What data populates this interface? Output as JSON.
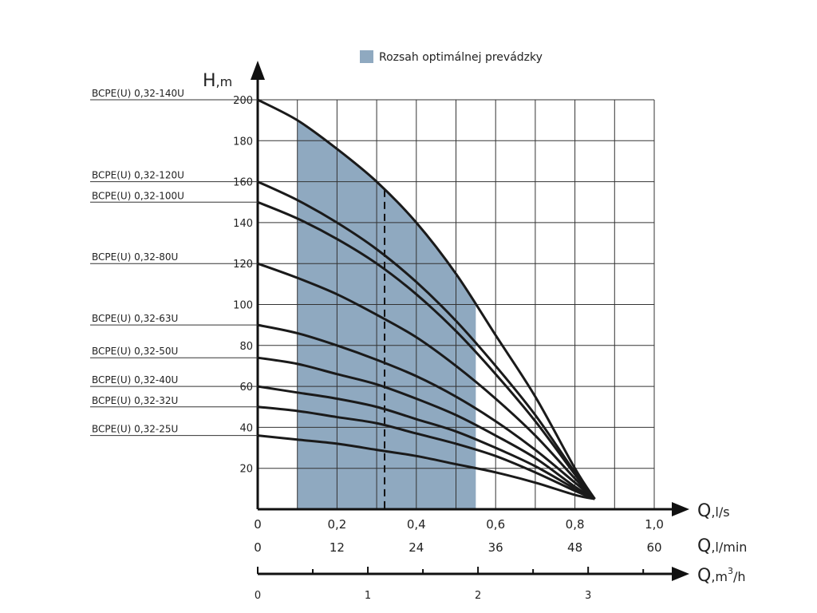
{
  "chart_data": {
    "type": "line",
    "legend": {
      "label": "Rozsah optimálnej prevádzky",
      "color": "#8fa9c0",
      "position": "top-center"
    },
    "y_axis": {
      "label_main": "H",
      "label_unit": ",m",
      "range": [
        0,
        200
      ],
      "ticks": [
        "20",
        "40",
        "60",
        "80",
        "100",
        "120",
        "140",
        "160",
        "180",
        "200"
      ]
    },
    "x_axis_ls": {
      "label_main": "Q",
      "label_unit": ",l/s",
      "range": [
        0,
        1.0
      ],
      "ticks": [
        "0",
        "0,2",
        "0,4",
        "0,6",
        "0,8",
        "1,0"
      ]
    },
    "x_axis_lmin": {
      "label_main": "Q",
      "label_unit": ",l/min",
      "ticks": [
        "0",
        "12",
        "24",
        "36",
        "48",
        "60"
      ]
    },
    "x_axis_m3h": {
      "label_main": "Q",
      "label_unit": ",m",
      "label_sup": "3",
      "label_tail": "/h",
      "ticks": [
        "0",
        "1",
        "2",
        "3"
      ]
    },
    "grid": true,
    "optimal_range_ls": [
      0.1,
      0.55
    ],
    "marker_line_ls": 0.32,
    "series": [
      {
        "name": "BCPE(U) 0,32-140U",
        "x": [
          0,
          0.1,
          0.2,
          0.3,
          0.4,
          0.5,
          0.6,
          0.7,
          0.8,
          0.85
        ],
        "y": [
          200,
          190,
          176,
          160,
          140,
          115,
          85,
          55,
          20,
          5
        ]
      },
      {
        "name": "BCPE(U) 0,32-120U",
        "x": [
          0,
          0.1,
          0.2,
          0.3,
          0.4,
          0.5,
          0.6,
          0.7,
          0.8,
          0.85
        ],
        "y": [
          160,
          151,
          140,
          127,
          111,
          92,
          70,
          46,
          18,
          5
        ]
      },
      {
        "name": "BCPE(U) 0,32-100U",
        "x": [
          0,
          0.1,
          0.2,
          0.3,
          0.4,
          0.5,
          0.6,
          0.7,
          0.8,
          0.85
        ],
        "y": [
          150,
          142,
          132,
          120,
          105,
          87,
          66,
          43,
          17,
          5
        ]
      },
      {
        "name": "BCPE(U) 0,32-80U",
        "x": [
          0,
          0.1,
          0.2,
          0.3,
          0.4,
          0.5,
          0.6,
          0.7,
          0.8,
          0.85
        ],
        "y": [
          120,
          113,
          105,
          95,
          84,
          70,
          54,
          36,
          15,
          5
        ]
      },
      {
        "name": "BCPE(U) 0,32-63U",
        "x": [
          0,
          0.1,
          0.2,
          0.3,
          0.4,
          0.5,
          0.6,
          0.7,
          0.8,
          0.85
        ],
        "y": [
          90,
          86,
          80,
          73,
          65,
          55,
          43,
          29,
          13,
          5
        ]
      },
      {
        "name": "BCPE(U) 0,32-50U",
        "x": [
          0,
          0.1,
          0.2,
          0.3,
          0.4,
          0.5,
          0.6,
          0.7,
          0.8,
          0.85
        ],
        "y": [
          74,
          71,
          66,
          61,
          54,
          46,
          36,
          25,
          11,
          5
        ]
      },
      {
        "name": "BCPE(U) 0,32-40U",
        "x": [
          0,
          0.1,
          0.2,
          0.3,
          0.4,
          0.5,
          0.6,
          0.7,
          0.8,
          0.85
        ],
        "y": [
          60,
          57,
          54,
          50,
          44,
          38,
          30,
          21,
          10,
          5
        ]
      },
      {
        "name": "BCPE(U) 0,32-32U",
        "x": [
          0,
          0.1,
          0.2,
          0.3,
          0.4,
          0.5,
          0.6,
          0.7,
          0.8,
          0.85
        ],
        "y": [
          50,
          48,
          45,
          42,
          37,
          32,
          26,
          18,
          9,
          5
        ]
      },
      {
        "name": "BCPE(U) 0,32-25U",
        "x": [
          0,
          0.1,
          0.2,
          0.3,
          0.4,
          0.5,
          0.6,
          0.7,
          0.8,
          0.85
        ],
        "y": [
          36,
          34,
          32,
          29,
          26,
          22,
          18,
          13,
          7,
          5
        ]
      }
    ]
  },
  "colors": {
    "curve": "#1a1a1a",
    "grid": "#333333",
    "fill": "#8fa9c0",
    "axis": "#111111"
  }
}
